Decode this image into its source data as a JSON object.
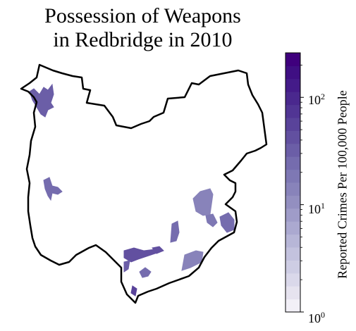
{
  "title_line1": "Possession of Weapons",
  "title_line2": "in Redbridge in 2010",
  "colorbar": {
    "label": "Reported Crimes Per 100,000 People",
    "scale": "log",
    "min": 1,
    "max": 260,
    "ticks": [
      {
        "base": "10",
        "exp": "0",
        "value": 1
      },
      {
        "base": "10",
        "exp": "1",
        "value": 10
      },
      {
        "base": "10",
        "exp": "2",
        "value": 100
      }
    ],
    "colormap": "Purples",
    "bin_colors": [
      "#f2f0f7",
      "#e6e3ef",
      "#dad8ea",
      "#cecde4",
      "#c3c2de",
      "#b7b6d7",
      "#aba9d0",
      "#9f9cc8",
      "#938fc0",
      "#8883ba",
      "#7e78b4",
      "#756cae",
      "#6b5ea7",
      "#6250a0",
      "#59439a",
      "#513594",
      "#4a288e",
      "#441b89",
      "#3f0f83",
      "#3f007d"
    ]
  },
  "map": {
    "region": "Redbridge",
    "outline_color": "#000000",
    "highlighted_areas": [
      {
        "area": "north-west",
        "color": "#6b5ea7"
      },
      {
        "area": "west",
        "color": "#756cae"
      },
      {
        "area": "east-1",
        "color": "#8883ba"
      },
      {
        "area": "east-2",
        "color": "#7e78b4"
      },
      {
        "area": "east-3",
        "color": "#756cae"
      },
      {
        "area": "south-east",
        "color": "#8883ba"
      },
      {
        "area": "south-1",
        "color": "#6250a0"
      },
      {
        "area": "south-2",
        "color": "#756cae"
      },
      {
        "area": "south-3",
        "color": "#6b5ea7"
      },
      {
        "area": "south-4",
        "color": "#756cae"
      },
      {
        "area": "south-5",
        "color": "#59439a"
      },
      {
        "area": "south-6",
        "color": "#6250a0"
      }
    ]
  }
}
